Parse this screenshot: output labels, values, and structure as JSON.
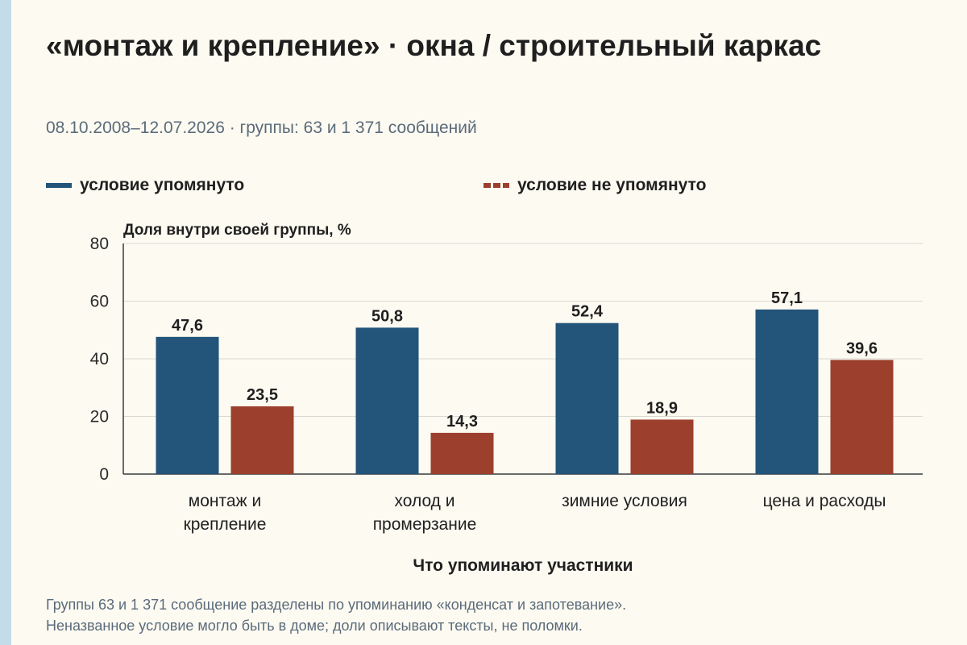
{
  "title": "«монтаж и крепление» · окна / строительный каркас",
  "subtitle": "08.10.2008–12.07.2026 · группы: 63 и 1 371 сообщений",
  "legend": {
    "mentioned": "условие упомянуто",
    "not_mentioned": "условие не упомянуто"
  },
  "colors": {
    "mentioned": "#23547a",
    "not_mentioned": "#9c3f2c"
  },
  "footnote": {
    "line1": "Группы 63 и 1 371 сообщение разделены по упоминанию «конденсат и запотевание».",
    "line2": "Неназванное условие могло быть в доме; доли описывают тексты, не поломки."
  },
  "chart_data": {
    "type": "bar",
    "ylabel": "Доля внутри своей группы, %",
    "xlabel": "Что упоминают участники",
    "ylim": [
      0,
      80
    ],
    "yticks": [
      0,
      20,
      40,
      60,
      80
    ],
    "grid": true,
    "legend_position": "top",
    "categories": [
      [
        "монтаж и",
        "крепление"
      ],
      [
        "холод и",
        "промерзание"
      ],
      [
        "зимние условия"
      ],
      [
        "цена и расходы"
      ]
    ],
    "series": [
      {
        "name": "условие упомянуто",
        "values": [
          47.6,
          50.8,
          52.4,
          57.1
        ],
        "labels": [
          "47,6",
          "50,8",
          "52,4",
          "57,1"
        ]
      },
      {
        "name": "условие не упомянуто",
        "values": [
          23.5,
          14.3,
          18.9,
          39.6
        ],
        "labels": [
          "23,5",
          "14,3",
          "18,9",
          "39,6"
        ]
      }
    ]
  }
}
